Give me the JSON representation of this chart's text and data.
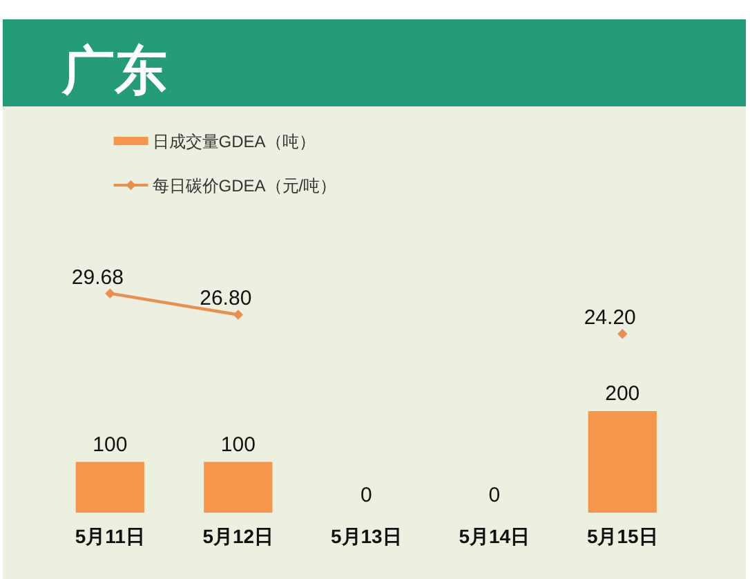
{
  "chart_data": {
    "type": "bar",
    "title": "广东",
    "categories": [
      "5月11日",
      "5月12日",
      "5月13日",
      "5月14日",
      "5月15日"
    ],
    "series": [
      {
        "name": "日成交量GDEA（吨）",
        "color": "#f5964b",
        "values": [
          100,
          100,
          0,
          0,
          200
        ],
        "value_labels": [
          "100",
          "100",
          "0",
          "0",
          "200"
        ]
      },
      {
        "name": "每日碳价GDEA（元/吨）",
        "type": "line",
        "axis": "y2",
        "color": "#ea8f4e",
        "values": [
          29.68,
          26.8,
          null,
          null,
          24.2
        ],
        "value_labels": [
          "29.68",
          "26.80",
          null,
          null,
          "24.20"
        ]
      }
    ],
    "ylim": [
      0,
      800
    ],
    "y2lim": [
      0,
      55
    ],
    "legend": "top left",
    "marker": "diamond",
    "tick_labels": "x"
  }
}
